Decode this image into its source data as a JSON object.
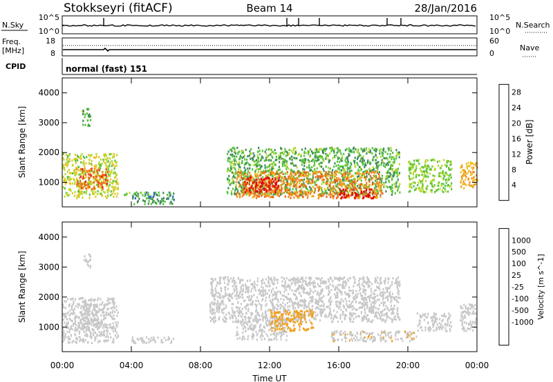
{
  "header": {
    "title": "Stokkseyri (fitACF)",
    "beam": "Beam 14",
    "date": "28/Jan/2016"
  },
  "top_panels": {
    "nsky_label": "N.Sky",
    "nsearch_label": "N.Search",
    "nsky_ticks": [
      "10^5",
      "10^0"
    ],
    "nsearch_ticks": [
      "10^5",
      "10^0"
    ],
    "freq_label_1": "Freq.",
    "freq_label_2": "[MHz]",
    "freq_ticks": [
      "18",
      "8"
    ],
    "nave_label": "Nave",
    "nave_ticks": [
      "60",
      "0"
    ],
    "cpid_label": "CPID",
    "cpid_text": "normal (fast) 151"
  },
  "colors": {
    "power": [
      "#1a1aff",
      "#2f63c8",
      "#3f8a5a",
      "#55c23c",
      "#b8d832",
      "#f0c020",
      "#f09020",
      "#f06010",
      "#e02010",
      "#e00000"
    ],
    "velocity": [
      "#1a2a9a",
      "#2a5ac0",
      "#3a8a70",
      "#55c23c",
      "#c8c8c8",
      "#c8c8c8",
      "#f0a020",
      "#f07010",
      "#f03010",
      "#e00000"
    ]
  },
  "chart_data": [
    {
      "type": "heatmap",
      "name": "power",
      "ylabel": "Slant Range [km]",
      "xlabel": "",
      "colorbar_label": "Power [dB]",
      "colorbar_ticks": [
        "4",
        "8",
        "12",
        "16",
        "20",
        "24",
        "28"
      ],
      "colorbar_range": [
        0,
        30
      ],
      "x_ticks": [
        "00:00",
        "04:00",
        "08:00",
        "12:00",
        "16:00",
        "20:00",
        "00:00"
      ],
      "y_ticks": [
        "1000",
        "2000",
        "3000",
        "4000"
      ],
      "xlim_hours": [
        0,
        24
      ],
      "ylim_km": [
        180,
        4500
      ],
      "echo_regions": [
        {
          "t0": 0.0,
          "t1": 3.2,
          "r0": 500,
          "r1": 2000,
          "value": 14
        },
        {
          "t0": 0.8,
          "t1": 2.6,
          "r0": 800,
          "r1": 1500,
          "value": 22
        },
        {
          "t0": 1.1,
          "t1": 1.6,
          "r0": 2900,
          "r1": 3500,
          "value": 10
        },
        {
          "t0": 3.5,
          "t1": 5.0,
          "r0": 600,
          "r1": 700,
          "value": 12
        },
        {
          "t0": 4.0,
          "t1": 6.5,
          "r0": 300,
          "r1": 700,
          "value": 8
        },
        {
          "t0": 9.5,
          "t1": 19.5,
          "r0": 600,
          "r1": 2200,
          "value": 10
        },
        {
          "t0": 10.0,
          "t1": 18.5,
          "r0": 500,
          "r1": 1400,
          "value": 20
        },
        {
          "t0": 10.5,
          "t1": 12.5,
          "r0": 700,
          "r1": 1200,
          "value": 27
        },
        {
          "t0": 16.0,
          "t1": 18.0,
          "r0": 500,
          "r1": 800,
          "value": 28
        },
        {
          "t0": 20.0,
          "t1": 22.5,
          "r0": 700,
          "r1": 1800,
          "value": 12
        },
        {
          "t0": 23.0,
          "t1": 24.0,
          "r0": 800,
          "r1": 1700,
          "value": 18
        }
      ]
    },
    {
      "type": "heatmap",
      "name": "velocity",
      "ylabel": "Slant Range [km]",
      "xlabel": "Time UT",
      "colorbar_label": "Velocity [m s^-1]",
      "colorbar_ticks": [
        "1000",
        "500",
        "100",
        "25",
        "-25",
        "-100",
        "-500",
        "-1000"
      ],
      "colorbar_range": [
        -1200,
        1200
      ],
      "x_ticks": [
        "00:00",
        "04:00",
        "08:00",
        "12:00",
        "16:00",
        "20:00",
        "00:00"
      ],
      "y_ticks": [
        "1000",
        "2000",
        "3000",
        "4000"
      ],
      "xlim_hours": [
        0,
        24
      ],
      "ylim_km": [
        180,
        4500
      ],
      "echo_regions": [
        {
          "t0": 0.0,
          "t1": 3.2,
          "r0": 500,
          "r1": 2000,
          "value": -100
        },
        {
          "t0": 1.0,
          "t1": 2.6,
          "r0": 900,
          "r1": 1800,
          "value": 100
        },
        {
          "t0": 1.2,
          "t1": 1.6,
          "r0": 3000,
          "r1": 3500,
          "value": 80
        },
        {
          "t0": 4.0,
          "t1": 6.5,
          "r0": 500,
          "r1": 700,
          "value": 80
        },
        {
          "t0": 8.5,
          "t1": 19.5,
          "r0": 1200,
          "r1": 2700,
          "value": 0
        },
        {
          "t0": 10.0,
          "t1": 13.0,
          "r0": 600,
          "r1": 1300,
          "value": 60
        },
        {
          "t0": 12.0,
          "t1": 14.5,
          "r0": 900,
          "r1": 1600,
          "value": -300
        },
        {
          "t0": 15.5,
          "t1": 20.5,
          "r0": 550,
          "r1": 900,
          "value": -200
        },
        {
          "t0": 20.5,
          "t1": 22.5,
          "r0": 900,
          "r1": 1500,
          "value": 0
        },
        {
          "t0": 23.0,
          "t1": 24.0,
          "r0": 900,
          "r1": 1800,
          "value": -100
        }
      ]
    }
  ]
}
